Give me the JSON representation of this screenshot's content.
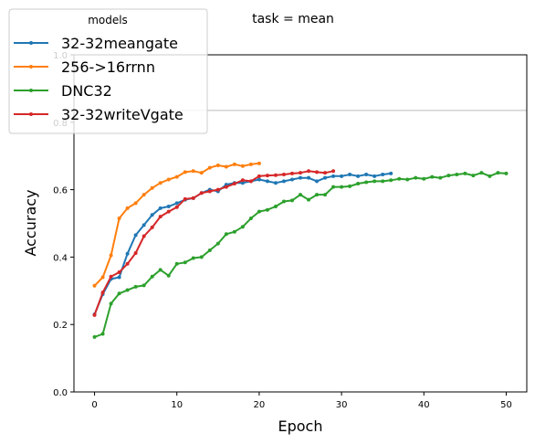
{
  "chart_data": {
    "type": "line",
    "title": "task = mean",
    "xlabel": "Epoch",
    "ylabel": "Accuracy",
    "xlim": [
      -2.5,
      52.5
    ],
    "ylim": [
      0.0,
      1.0
    ],
    "xticks": [
      0,
      10,
      20,
      30,
      40,
      50
    ],
    "yticks": [
      0.0,
      0.2,
      0.4,
      0.6,
      0.8,
      1.0
    ],
    "ytick_labels": [
      "0.0",
      "0.2",
      "0.4",
      "0.6",
      "0.8",
      "1.0"
    ],
    "grid": false,
    "legend": {
      "title": "models",
      "placement": "upper-left, outside plot"
    },
    "reference_line_y": 0.835,
    "reference_line_color": "#c8c8c8",
    "series": [
      {
        "name": "32-32meangate",
        "color": "#1f77b4",
        "x": [
          0,
          1,
          2,
          3,
          4,
          5,
          6,
          7,
          8,
          9,
          10,
          11,
          12,
          13,
          14,
          15,
          16,
          17,
          18,
          19,
          20,
          21,
          22,
          23,
          24,
          25,
          26,
          27,
          28,
          29,
          30,
          31,
          32,
          33,
          34,
          35,
          36
        ],
        "y": [
          0.23,
          0.29,
          0.335,
          0.34,
          0.41,
          0.465,
          0.495,
          0.525,
          0.545,
          0.55,
          0.56,
          0.57,
          0.575,
          0.59,
          0.6,
          0.595,
          0.615,
          0.62,
          0.62,
          0.625,
          0.63,
          0.625,
          0.62,
          0.625,
          0.63,
          0.635,
          0.635,
          0.625,
          0.635,
          0.64,
          0.64,
          0.645,
          0.64,
          0.645,
          0.64,
          0.645,
          0.648
        ]
      },
      {
        "name": "256->16rrnn",
        "color": "#ff7f0e",
        "x": [
          0,
          1,
          2,
          3,
          4,
          5,
          6,
          7,
          8,
          9,
          10,
          11,
          12,
          13,
          14,
          15,
          16,
          17,
          18,
          19,
          20
        ],
        "y": [
          0.315,
          0.34,
          0.405,
          0.515,
          0.545,
          0.56,
          0.585,
          0.605,
          0.62,
          0.63,
          0.638,
          0.652,
          0.655,
          0.65,
          0.665,
          0.672,
          0.668,
          0.675,
          0.67,
          0.675,
          0.678
        ]
      },
      {
        "name": "DNC32",
        "color": "#2ca02c",
        "x": [
          0,
          1,
          2,
          3,
          4,
          5,
          6,
          7,
          8,
          9,
          10,
          11,
          12,
          13,
          14,
          15,
          16,
          17,
          18,
          19,
          20,
          21,
          22,
          23,
          24,
          25,
          26,
          27,
          28,
          29,
          30,
          31,
          32,
          33,
          34,
          35,
          36,
          37,
          38,
          39,
          40,
          41,
          42,
          43,
          44,
          45,
          46,
          47,
          48,
          49,
          50
        ],
        "y": [
          0.163,
          0.172,
          0.262,
          0.292,
          0.302,
          0.312,
          0.316,
          0.342,
          0.362,
          0.345,
          0.38,
          0.384,
          0.397,
          0.4,
          0.42,
          0.44,
          0.468,
          0.475,
          0.49,
          0.515,
          0.535,
          0.54,
          0.55,
          0.565,
          0.568,
          0.585,
          0.57,
          0.585,
          0.585,
          0.608,
          0.608,
          0.61,
          0.618,
          0.622,
          0.625,
          0.625,
          0.628,
          0.632,
          0.63,
          0.635,
          0.632,
          0.638,
          0.635,
          0.642,
          0.645,
          0.648,
          0.642,
          0.65,
          0.64,
          0.65,
          0.648
        ]
      },
      {
        "name": "32-32writeVgate",
        "color": "#d62728",
        "x": [
          0,
          1,
          2,
          3,
          4,
          5,
          6,
          7,
          8,
          9,
          10,
          11,
          12,
          13,
          14,
          15,
          16,
          17,
          18,
          19,
          20,
          21,
          22,
          23,
          24,
          25,
          26,
          27,
          28,
          29
        ],
        "y": [
          0.228,
          0.295,
          0.342,
          0.355,
          0.38,
          0.412,
          0.462,
          0.488,
          0.52,
          0.535,
          0.548,
          0.572,
          0.575,
          0.59,
          0.595,
          0.6,
          0.608,
          0.618,
          0.628,
          0.625,
          0.64,
          0.642,
          0.643,
          0.645,
          0.648,
          0.65,
          0.655,
          0.652,
          0.65,
          0.655
        ]
      }
    ]
  }
}
